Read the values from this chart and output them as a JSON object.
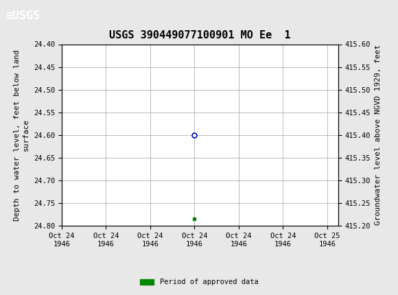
{
  "title": "USGS 390449077100901 MO Ee  1",
  "header_color": "#1a6b3c",
  "bg_color": "#e8e8e8",
  "plot_bg_color": "#ffffff",
  "grid_color": "#b0b0b0",
  "ylabel_left": "Depth to water level, feet below land\nsurface",
  "ylabel_right": "Groundwater level above NGVD 1929, feet",
  "ylim_left": [
    24.8,
    24.4
  ],
  "ylim_right": [
    415.2,
    415.6
  ],
  "yticks_left": [
    24.4,
    24.45,
    24.5,
    24.55,
    24.6,
    24.65,
    24.7,
    24.75,
    24.8
  ],
  "yticks_right": [
    415.6,
    415.55,
    415.5,
    415.45,
    415.4,
    415.35,
    415.3,
    415.25,
    415.2
  ],
  "data_point_x_hours": 12.0,
  "data_point_y": 24.6,
  "data_point_color": "#0000cc",
  "green_square_x_hours": 12.0,
  "green_square_y": 24.785,
  "green_square_color": "#008800",
  "xaxis_total_hours": 25,
  "xtick_hours": [
    0,
    4,
    8,
    12,
    16,
    20,
    24
  ],
  "xtick_labels": [
    "Oct 24\n1946",
    "Oct 24\n1946",
    "Oct 24\n1946",
    "Oct 24\n1946",
    "Oct 24\n1946",
    "Oct 24\n1946",
    "Oct 25\n1946"
  ],
  "legend_label": "Period of approved data",
  "legend_color": "#008800",
  "font_family": "DejaVu Sans Mono",
  "title_fontsize": 11,
  "axis_label_fontsize": 8,
  "tick_fontsize": 7.5
}
